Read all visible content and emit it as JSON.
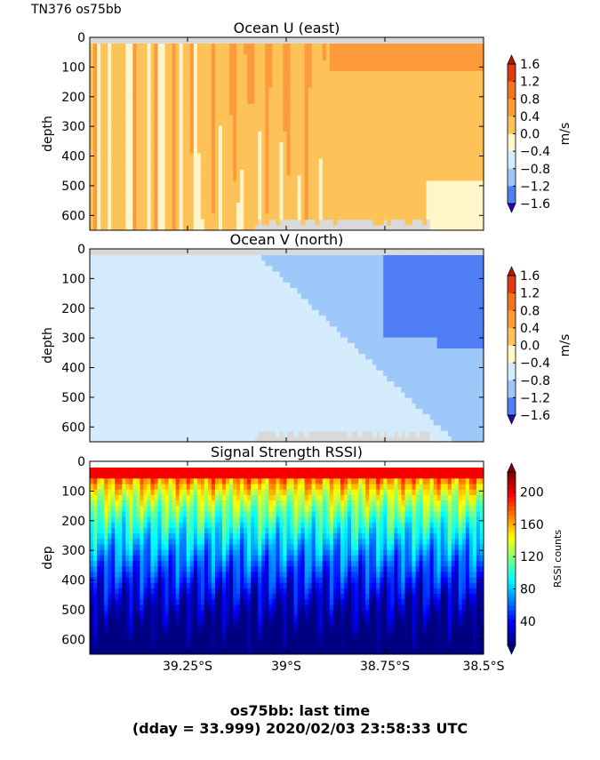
{
  "figure": {
    "corner_label": "TN376 os75bb",
    "footer_line1": "os75bb: last time",
    "footer_line2": "(dday = 33.999) 2020/02/03 23:58:33 UTC"
  },
  "shared_x_ticks": [
    "39.25°S",
    "39°S",
    "38.75°S",
    "38.5°S"
  ],
  "colors": {
    "no_data": "#d9d9d9",
    "velocity_levels": [
      "#2a00b8",
      "#2e5cf0",
      "#4f7ef5",
      "#9ec8f9",
      "#d4ecfc",
      "#fef6c8",
      "#fdc258",
      "#fd9a3a",
      "#f3731f",
      "#dd3d0c",
      "#b81604"
    ]
  },
  "chart_data": [
    {
      "type": "heatmap",
      "title": "Ocean U (east)",
      "ylabel": "depth",
      "xlabel": "",
      "y_ticks": [
        0,
        100,
        200,
        300,
        400,
        500,
        600
      ],
      "ylim": [
        650,
        0
      ],
      "x_ticks": [
        "39.25°S",
        "39°S",
        "38.75°S",
        "38.5°S"
      ],
      "colorbar": {
        "label": "m/s",
        "ticks": [
          "1.6",
          "1.2",
          "0.8",
          "0.4",
          "0.0",
          "−0.4",
          "−0.8",
          "−1.2",
          "−1.6"
        ],
        "range": [
          -1.6,
          1.6
        ]
      }
    },
    {
      "type": "heatmap",
      "title": "Ocean V (north)",
      "ylabel": "depth",
      "xlabel": "",
      "y_ticks": [
        0,
        100,
        200,
        300,
        400,
        500,
        600
      ],
      "ylim": [
        650,
        0
      ],
      "x_ticks": [
        "39.25°S",
        "39°S",
        "38.75°S",
        "38.5°S"
      ],
      "colorbar": {
        "label": "m/s",
        "ticks": [
          "1.6",
          "1.2",
          "0.8",
          "0.4",
          "0.0",
          "−0.4",
          "−0.8",
          "−1.2",
          "−1.6"
        ],
        "range": [
          -1.6,
          1.6
        ]
      }
    },
    {
      "type": "heatmap",
      "title": "Signal Strength RSSI)",
      "ylabel": "dep",
      "xlabel": "",
      "y_ticks": [
        0,
        100,
        200,
        300,
        400,
        500,
        600
      ],
      "ylim": [
        650,
        0
      ],
      "x_ticks": [
        "39.25°S",
        "39°S",
        "38.75°S",
        "38.5°S"
      ],
      "colorbar": {
        "label": "RSSI counts",
        "ticks": [
          "200",
          "160",
          "120",
          "80",
          "40"
        ],
        "range": [
          10,
          225
        ]
      }
    }
  ]
}
